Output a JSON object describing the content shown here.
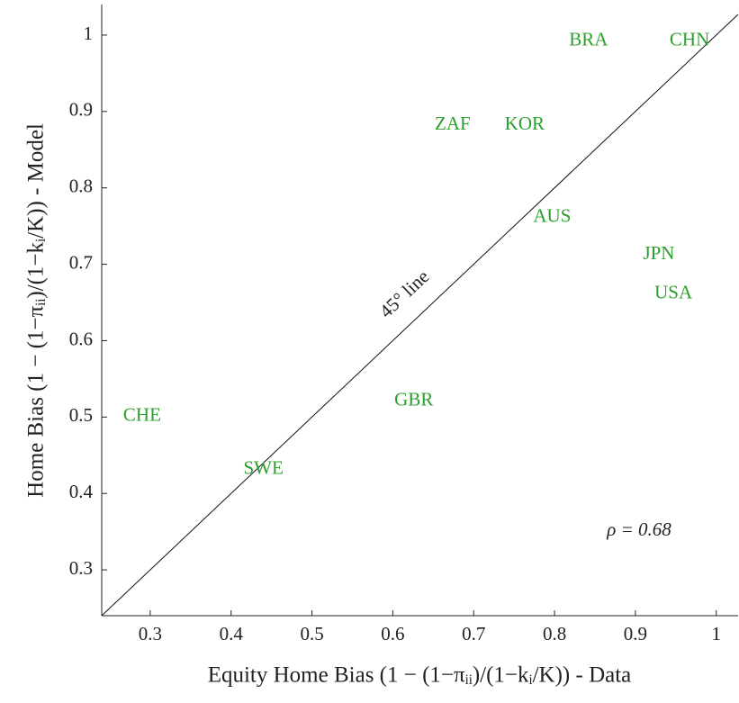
{
  "chart_data": {
    "type": "scatter",
    "x_label": "Equity Home Bias (1 − (1−πᵢᵢ)/(1−kᵢ/K)) - Data",
    "y_label": "Home Bias (1 − (1−πᵢᵢ)/(1−kᵢ/K)) - Model",
    "points": [
      {
        "label": "BRA",
        "x": 0.842,
        "y": 0.992
      },
      {
        "label": "CHN",
        "x": 0.967,
        "y": 0.992
      },
      {
        "label": "ZAF",
        "x": 0.674,
        "y": 0.882
      },
      {
        "label": "KOR",
        "x": 0.763,
        "y": 0.882
      },
      {
        "label": "AUS",
        "x": 0.797,
        "y": 0.761
      },
      {
        "label": "JPN",
        "x": 0.929,
        "y": 0.712
      },
      {
        "label": "USA",
        "x": 0.947,
        "y": 0.661
      },
      {
        "label": "GBR",
        "x": 0.626,
        "y": 0.521
      },
      {
        "label": "CHE",
        "x": 0.29,
        "y": 0.501
      },
      {
        "label": "SWE",
        "x": 0.44,
        "y": 0.431
      }
    ],
    "color": "#2ca02c",
    "diagonal": true,
    "diagonal_label": "45° line",
    "annotation": "ρ = 0.68",
    "xlim": [
      0.24,
      1.027
    ],
    "xticks": [
      0.3,
      0.4,
      0.5,
      0.6,
      0.7,
      0.8,
      0.9,
      1
    ],
    "ylim": [
      0.24,
      1.04
    ],
    "yticks": [
      0.3,
      0.4,
      0.5,
      0.6,
      0.7,
      0.8,
      0.9,
      1
    ]
  }
}
